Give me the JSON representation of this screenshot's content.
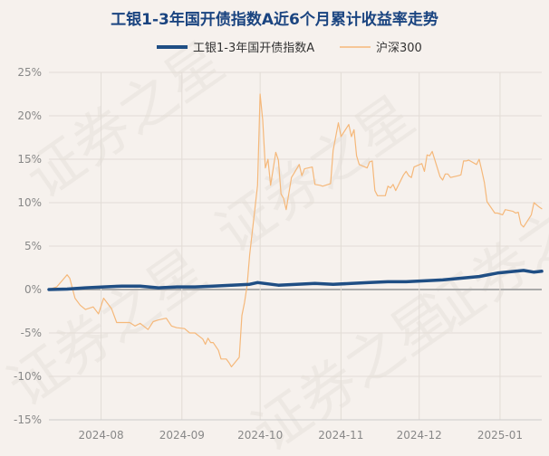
{
  "chart_data": {
    "type": "line",
    "title": "工银1-3年国开债指数A近6个月累计收益率走势",
    "xlabel": "",
    "ylabel": "",
    "ylim": [
      -15,
      25
    ],
    "yticks": [
      25,
      20,
      15,
      10,
      5,
      0,
      -5,
      -10,
      -15
    ],
    "ytick_labels": [
      "25%",
      "20%",
      "15%",
      "10%",
      "5%",
      "0%",
      "-5%",
      "-10%",
      "-15%"
    ],
    "x_range": [
      "2024-07-12",
      "2025-01-17"
    ],
    "xticks": [
      {
        "date": "2024-08-01",
        "label": "2024-08"
      },
      {
        "date": "2024-09-01",
        "label": "2024-09"
      },
      {
        "date": "2024-10-01",
        "label": "2024-10"
      },
      {
        "date": "2024-11-01",
        "label": "2024-11"
      },
      {
        "date": "2024-12-01",
        "label": "2024-12"
      },
      {
        "date": "2025-01-01",
        "label": "2025-01"
      }
    ],
    "grid": true,
    "legend_position": "top-center",
    "watermark": "证券之星",
    "colors": {
      "background": "#f6f1ed",
      "fund": "#1f4e84",
      "index": "#f5b87a",
      "grid": "#e2dcd6",
      "zero_line": "#aaaaaa",
      "title": "#1a4480"
    },
    "series": [
      {
        "name": "工银1-3年国开债指数A",
        "color": "#1f4e84",
        "points": [
          [
            "2024-07-12",
            0.0
          ],
          [
            "2024-07-19",
            0.05
          ],
          [
            "2024-07-26",
            0.2
          ],
          [
            "2024-08-02",
            0.3
          ],
          [
            "2024-08-09",
            0.4
          ],
          [
            "2024-08-16",
            0.4
          ],
          [
            "2024-08-23",
            0.2
          ],
          [
            "2024-08-30",
            0.3
          ],
          [
            "2024-09-06",
            0.3
          ],
          [
            "2024-09-13",
            0.4
          ],
          [
            "2024-09-20",
            0.5
          ],
          [
            "2024-09-27",
            0.6
          ],
          [
            "2024-09-30",
            0.8
          ],
          [
            "2024-10-08",
            0.5
          ],
          [
            "2024-10-15",
            0.6
          ],
          [
            "2024-10-22",
            0.7
          ],
          [
            "2024-10-29",
            0.6
          ],
          [
            "2024-11-05",
            0.7
          ],
          [
            "2024-11-12",
            0.8
          ],
          [
            "2024-11-19",
            0.9
          ],
          [
            "2024-11-26",
            0.9
          ],
          [
            "2024-12-03",
            1.0
          ],
          [
            "2024-12-10",
            1.1
          ],
          [
            "2024-12-17",
            1.3
          ],
          [
            "2024-12-24",
            1.5
          ],
          [
            "2024-12-31",
            1.9
          ],
          [
            "2025-01-07",
            2.1
          ],
          [
            "2025-01-10",
            2.2
          ],
          [
            "2025-01-14",
            2.0
          ],
          [
            "2025-01-17",
            2.1
          ]
        ]
      },
      {
        "name": "沪深300",
        "color": "#f5b87a",
        "points": [
          [
            "2024-07-12",
            0.0
          ],
          [
            "2024-07-15",
            0.3
          ],
          [
            "2024-07-17",
            1.0
          ],
          [
            "2024-07-19",
            1.7
          ],
          [
            "2024-07-20",
            1.3
          ],
          [
            "2024-07-22",
            -1.0
          ],
          [
            "2024-07-24",
            -1.8
          ],
          [
            "2024-07-26",
            -2.3
          ],
          [
            "2024-07-29",
            -2.0
          ],
          [
            "2024-07-31",
            -2.8
          ],
          [
            "2024-08-02",
            -1.0
          ],
          [
            "2024-08-05",
            -2.2
          ],
          [
            "2024-08-07",
            -3.8
          ],
          [
            "2024-08-09",
            -3.8
          ],
          [
            "2024-08-12",
            -3.8
          ],
          [
            "2024-08-14",
            -4.2
          ],
          [
            "2024-08-16",
            -3.9
          ],
          [
            "2024-08-19",
            -4.6
          ],
          [
            "2024-08-21",
            -3.7
          ],
          [
            "2024-08-23",
            -3.5
          ],
          [
            "2024-08-26",
            -3.3
          ],
          [
            "2024-08-28",
            -4.2
          ],
          [
            "2024-08-30",
            -4.4
          ],
          [
            "2024-09-02",
            -4.5
          ],
          [
            "2024-09-04",
            -5.0
          ],
          [
            "2024-09-06",
            -5.0
          ],
          [
            "2024-09-09",
            -5.7
          ],
          [
            "2024-09-10",
            -6.3
          ],
          [
            "2024-09-11",
            -5.6
          ],
          [
            "2024-09-12",
            -6.1
          ],
          [
            "2024-09-13",
            -6.1
          ],
          [
            "2024-09-15",
            -7.0
          ],
          [
            "2024-09-16",
            -8.0
          ],
          [
            "2024-09-18",
            -8.0
          ],
          [
            "2024-09-19",
            -8.4
          ],
          [
            "2024-09-20",
            -8.9
          ],
          [
            "2024-09-23",
            -7.8
          ],
          [
            "2024-09-24",
            -3.0
          ],
          [
            "2024-09-25",
            -1.5
          ],
          [
            "2024-09-26",
            0.5
          ],
          [
            "2024-09-27",
            4.0
          ],
          [
            "2024-09-30",
            12.0
          ],
          [
            "2024-10-01",
            22.5
          ],
          [
            "2024-10-02",
            19.5
          ],
          [
            "2024-10-03",
            14.0
          ],
          [
            "2024-10-04",
            15.0
          ],
          [
            "2024-10-05",
            12.0
          ],
          [
            "2024-10-07",
            15.8
          ],
          [
            "2024-10-08",
            14.9
          ],
          [
            "2024-10-09",
            11.0
          ],
          [
            "2024-10-10",
            10.5
          ],
          [
            "2024-10-11",
            9.2
          ],
          [
            "2024-10-13",
            12.9
          ],
          [
            "2024-10-14",
            13.4
          ],
          [
            "2024-10-16",
            14.4
          ],
          [
            "2024-10-17",
            13.1
          ],
          [
            "2024-10-18",
            13.9
          ],
          [
            "2024-10-21",
            14.1
          ],
          [
            "2024-10-22",
            12.1
          ],
          [
            "2024-10-24",
            12.0
          ],
          [
            "2024-10-25",
            11.9
          ],
          [
            "2024-10-28",
            12.2
          ],
          [
            "2024-10-29",
            16.0
          ],
          [
            "2024-10-31",
            19.2
          ],
          [
            "2024-11-01",
            17.6
          ],
          [
            "2024-11-04",
            19.0
          ],
          [
            "2024-11-05",
            17.6
          ],
          [
            "2024-11-06",
            18.4
          ],
          [
            "2024-11-07",
            15.4
          ],
          [
            "2024-11-08",
            14.4
          ],
          [
            "2024-11-11",
            14.0
          ],
          [
            "2024-11-12",
            14.7
          ],
          [
            "2024-11-13",
            14.8
          ],
          [
            "2024-11-14",
            11.4
          ],
          [
            "2024-11-15",
            10.8
          ],
          [
            "2024-11-18",
            10.8
          ],
          [
            "2024-11-19",
            11.9
          ],
          [
            "2024-11-20",
            11.7
          ],
          [
            "2024-11-21",
            12.1
          ],
          [
            "2024-11-22",
            11.4
          ],
          [
            "2024-11-25",
            13.2
          ],
          [
            "2024-11-26",
            13.6
          ],
          [
            "2024-11-27",
            13.1
          ],
          [
            "2024-11-28",
            12.9
          ],
          [
            "2024-11-29",
            14.1
          ],
          [
            "2024-12-02",
            14.5
          ],
          [
            "2024-12-03",
            13.6
          ],
          [
            "2024-12-04",
            15.5
          ],
          [
            "2024-12-05",
            15.4
          ],
          [
            "2024-12-06",
            15.9
          ],
          [
            "2024-12-09",
            13.0
          ],
          [
            "2024-12-10",
            12.6
          ],
          [
            "2024-12-11",
            13.3
          ],
          [
            "2024-12-12",
            13.3
          ],
          [
            "2024-12-13",
            12.9
          ],
          [
            "2024-12-16",
            13.1
          ],
          [
            "2024-12-17",
            13.2
          ],
          [
            "2024-12-18",
            14.8
          ],
          [
            "2024-12-19",
            14.8
          ],
          [
            "2024-12-20",
            14.9
          ],
          [
            "2024-12-23",
            14.4
          ],
          [
            "2024-12-24",
            15.0
          ],
          [
            "2024-12-25",
            13.7
          ],
          [
            "2024-12-26",
            12.3
          ],
          [
            "2024-12-27",
            10.1
          ],
          [
            "2024-12-30",
            8.8
          ],
          [
            "2024-12-31",
            8.8
          ],
          [
            "2025-01-02",
            8.6
          ],
          [
            "2025-01-03",
            9.2
          ],
          [
            "2025-01-06",
            9.0
          ],
          [
            "2025-01-07",
            8.8
          ],
          [
            "2025-01-08",
            8.9
          ],
          [
            "2025-01-09",
            7.5
          ],
          [
            "2025-01-10",
            7.2
          ],
          [
            "2025-01-13",
            8.6
          ],
          [
            "2025-01-14",
            10.0
          ],
          [
            "2025-01-16",
            9.5
          ],
          [
            "2025-01-17",
            9.3
          ]
        ]
      }
    ]
  }
}
